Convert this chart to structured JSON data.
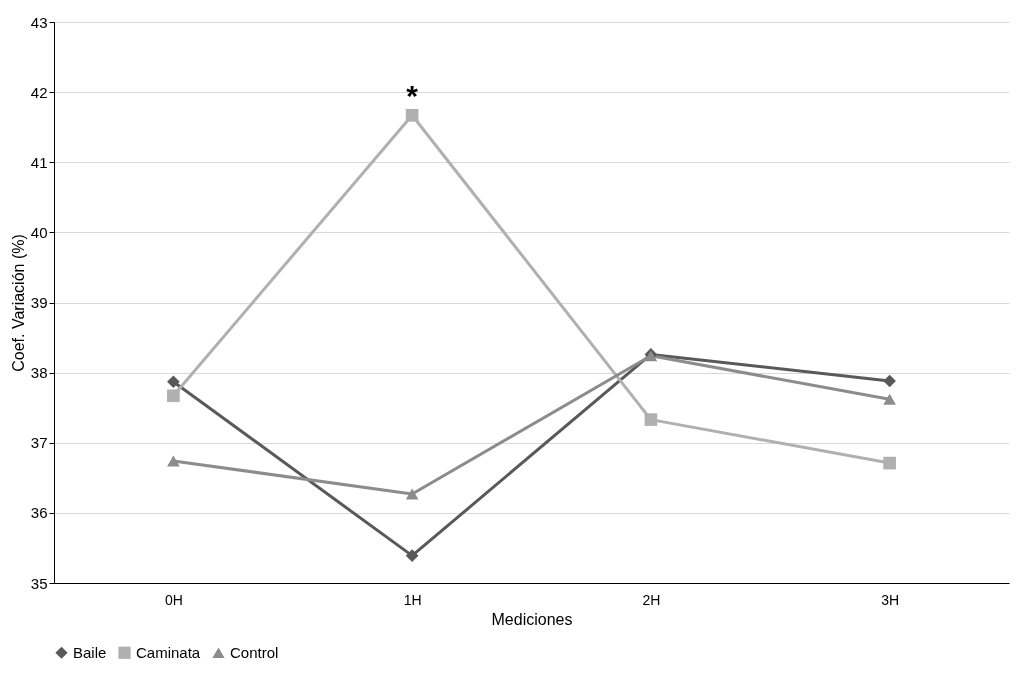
{
  "chart_data": {
    "type": "line",
    "xlabel": "Mediciones",
    "ylabel": "Coef. Variación (%)",
    "categories": [
      "0H",
      "1H",
      "2H",
      "3H"
    ],
    "series": [
      {
        "name": "Baile",
        "color": "#595959",
        "marker": "diamond",
        "values": [
          37.87,
          35.39,
          38.26,
          37.88
        ]
      },
      {
        "name": "Caminata",
        "color": "#b0b0b0",
        "marker": "square",
        "values": [
          37.67,
          41.67,
          37.33,
          36.71
        ]
      },
      {
        "name": "Control",
        "color": "#8c8c8c",
        "marker": "triangle",
        "values": [
          36.74,
          36.27,
          38.24,
          37.62
        ]
      }
    ],
    "ylim": [
      35,
      43
    ],
    "yticks": [
      35,
      36,
      37,
      38,
      39,
      40,
      41,
      42,
      43
    ],
    "grid": "y",
    "legend": "bottom",
    "annotations": [
      "*"
    ]
  }
}
